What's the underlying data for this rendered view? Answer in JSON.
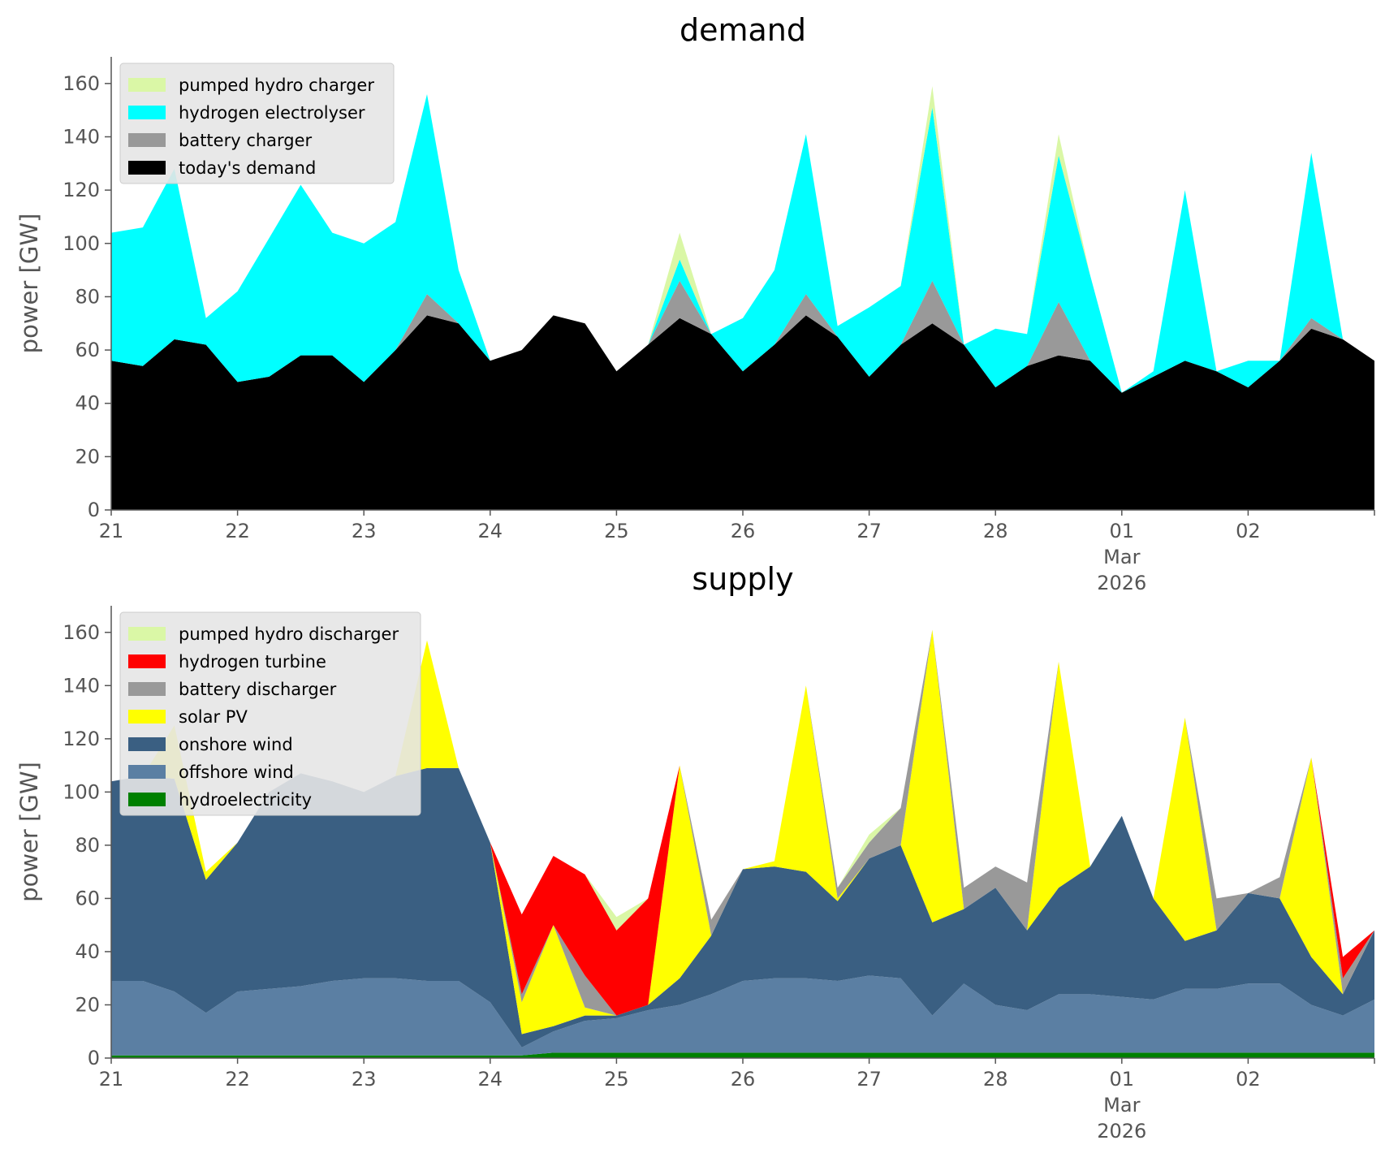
{
  "chart_data": [
    {
      "type": "area",
      "stacked": true,
      "title": "demand",
      "ylabel": "power [GW]",
      "ylim": [
        0,
        170
      ],
      "yticks": [
        0,
        20,
        40,
        60,
        80,
        100,
        120,
        140,
        160
      ],
      "xlim": [
        "2026-02-21 00:00",
        "2026-03-03 00:00"
      ],
      "xticks": [
        {
          "t": "2026-02-21",
          "label": "21"
        },
        {
          "t": "2026-02-22",
          "label": "22"
        },
        {
          "t": "2026-02-23",
          "label": "23"
        },
        {
          "t": "2026-02-24",
          "label": "24"
        },
        {
          "t": "2026-02-25",
          "label": "25"
        },
        {
          "t": "2026-02-26",
          "label": "26"
        },
        {
          "t": "2026-02-27",
          "label": "27"
        },
        {
          "t": "2026-02-28",
          "label": "28"
        },
        {
          "t": "2026-03-01",
          "label": "01",
          "sub1": "Mar",
          "sub2": "2026"
        },
        {
          "t": "2026-03-02",
          "label": "02"
        },
        {
          "t": "2026-03-03",
          "label": ""
        }
      ],
      "legend_position": "top-left",
      "grid": false,
      "x": [
        "2026-02-21 00:00",
        "2026-02-21 06:00",
        "2026-02-21 12:00",
        "2026-02-21 18:00",
        "2026-02-22 00:00",
        "2026-02-22 06:00",
        "2026-02-22 12:00",
        "2026-02-22 18:00",
        "2026-02-23 00:00",
        "2026-02-23 06:00",
        "2026-02-23 12:00",
        "2026-02-23 18:00",
        "2026-02-24 00:00",
        "2026-02-24 06:00",
        "2026-02-24 12:00",
        "2026-02-24 18:00",
        "2026-02-25 00:00",
        "2026-02-25 06:00",
        "2026-02-25 12:00",
        "2026-02-25 18:00",
        "2026-02-26 00:00",
        "2026-02-26 06:00",
        "2026-02-26 12:00",
        "2026-02-26 18:00",
        "2026-02-27 00:00",
        "2026-02-27 06:00",
        "2026-02-27 12:00",
        "2026-02-27 18:00",
        "2026-02-28 00:00",
        "2026-02-28 06:00",
        "2026-02-28 12:00",
        "2026-02-28 18:00",
        "2026-03-01 00:00",
        "2026-03-01 06:00",
        "2026-03-01 12:00",
        "2026-03-01 18:00",
        "2026-03-02 00:00",
        "2026-03-02 06:00",
        "2026-03-02 12:00",
        "2026-03-02 18:00",
        "2026-03-03 00:00"
      ],
      "series": [
        {
          "name": "today's demand",
          "color": "#000000",
          "values": [
            56,
            54,
            64,
            62,
            48,
            50,
            58,
            58,
            48,
            60,
            73,
            70,
            56,
            60,
            73,
            70,
            52,
            62,
            72,
            66,
            52,
            62,
            73,
            65,
            50,
            62,
            70,
            62,
            46,
            54,
            58,
            56,
            44,
            50,
            56,
            52,
            46,
            56,
            68,
            64,
            56
          ]
        },
        {
          "name": "battery charger",
          "color": "#999999",
          "values": [
            0,
            0,
            0,
            0,
            0,
            0,
            0,
            0,
            0,
            0,
            8,
            0,
            0,
            0,
            0,
            0,
            0,
            0,
            14,
            0,
            0,
            0,
            8,
            0,
            0,
            0,
            16,
            0,
            0,
            0,
            20,
            0,
            0,
            0,
            0,
            0,
            0,
            0,
            4,
            0,
            0
          ]
        },
        {
          "name": "hydrogen electrolyser",
          "color": "#00ffff",
          "values": [
            48,
            52,
            64,
            10,
            34,
            52,
            64,
            46,
            52,
            48,
            75,
            20,
            0,
            0,
            0,
            0,
            0,
            0,
            8,
            0,
            20,
            28,
            60,
            4,
            26,
            22,
            65,
            0,
            22,
            12,
            55,
            32,
            0,
            2,
            64,
            0,
            10,
            0,
            62,
            0,
            0
          ]
        },
        {
          "name": "pumped hydro charger",
          "color": "#daf7a6",
          "values": [
            0,
            0,
            0,
            0,
            0,
            0,
            0,
            0,
            0,
            0,
            0,
            0,
            0,
            0,
            0,
            0,
            0,
            0,
            10,
            0,
            0,
            0,
            0,
            0,
            0,
            0,
            8,
            0,
            0,
            0,
            8,
            0,
            0,
            0,
            0,
            0,
            0,
            0,
            0,
            0,
            0
          ]
        }
      ]
    },
    {
      "type": "area",
      "stacked": true,
      "title": "supply",
      "ylabel": "power [GW]",
      "ylim": [
        0,
        170
      ],
      "yticks": [
        0,
        20,
        40,
        60,
        80,
        100,
        120,
        140,
        160
      ],
      "xlim": [
        "2026-02-21 00:00",
        "2026-03-03 00:00"
      ],
      "xticks": [
        {
          "t": "2026-02-21",
          "label": "21"
        },
        {
          "t": "2026-02-22",
          "label": "22"
        },
        {
          "t": "2026-02-23",
          "label": "23"
        },
        {
          "t": "2026-02-24",
          "label": "24"
        },
        {
          "t": "2026-02-25",
          "label": "25"
        },
        {
          "t": "2026-02-26",
          "label": "26"
        },
        {
          "t": "2026-02-27",
          "label": "27"
        },
        {
          "t": "2026-02-28",
          "label": "28"
        },
        {
          "t": "2026-03-01",
          "label": "01",
          "sub1": "Mar",
          "sub2": "2026"
        },
        {
          "t": "2026-03-02",
          "label": "02"
        },
        {
          "t": "2026-03-03",
          "label": ""
        }
      ],
      "legend_position": "top-left",
      "grid": false,
      "x": [
        "2026-02-21 00:00",
        "2026-02-21 06:00",
        "2026-02-21 12:00",
        "2026-02-21 18:00",
        "2026-02-22 00:00",
        "2026-02-22 06:00",
        "2026-02-22 12:00",
        "2026-02-22 18:00",
        "2026-02-23 00:00",
        "2026-02-23 06:00",
        "2026-02-23 12:00",
        "2026-02-23 18:00",
        "2026-02-24 00:00",
        "2026-02-24 06:00",
        "2026-02-24 12:00",
        "2026-02-24 18:00",
        "2026-02-25 00:00",
        "2026-02-25 06:00",
        "2026-02-25 12:00",
        "2026-02-25 18:00",
        "2026-02-26 00:00",
        "2026-02-26 06:00",
        "2026-02-26 12:00",
        "2026-02-26 18:00",
        "2026-02-27 00:00",
        "2026-02-27 06:00",
        "2026-02-27 12:00",
        "2026-02-27 18:00",
        "2026-02-28 00:00",
        "2026-02-28 06:00",
        "2026-02-28 12:00",
        "2026-02-28 18:00",
        "2026-03-01 00:00",
        "2026-03-01 06:00",
        "2026-03-01 12:00",
        "2026-03-01 18:00",
        "2026-03-02 00:00",
        "2026-03-02 06:00",
        "2026-03-02 12:00",
        "2026-03-02 18:00",
        "2026-03-03 00:00"
      ],
      "series": [
        {
          "name": "hydroelectricity",
          "color": "#008000",
          "values": [
            1,
            1,
            1,
            1,
            1,
            1,
            1,
            1,
            1,
            1,
            1,
            1,
            1,
            1,
            2,
            2,
            2,
            2,
            2,
            2,
            2,
            2,
            2,
            2,
            2,
            2,
            2,
            2,
            2,
            2,
            2,
            2,
            2,
            2,
            2,
            2,
            2,
            2,
            2,
            2,
            2
          ]
        },
        {
          "name": "offshore wind",
          "color": "#5b7fa3",
          "values": [
            28,
            28,
            24,
            16,
            24,
            25,
            26,
            28,
            29,
            29,
            28,
            28,
            20,
            3,
            8,
            12,
            13,
            16,
            18,
            22,
            27,
            28,
            28,
            27,
            29,
            28,
            14,
            26,
            18,
            16,
            22,
            22,
            21,
            20,
            24,
            24,
            26,
            26,
            18,
            14,
            20
          ]
        },
        {
          "name": "onshore wind",
          "color": "#3a5f82",
          "values": [
            75,
            77,
            80,
            50,
            56,
            74,
            80,
            75,
            70,
            76,
            80,
            80,
            60,
            5,
            2,
            2,
            1,
            2,
            10,
            22,
            42,
            42,
            40,
            30,
            44,
            50,
            35,
            28,
            44,
            30,
            40,
            48,
            68,
            38,
            18,
            22,
            34,
            32,
            18,
            8,
            26
          ]
        },
        {
          "name": "solar PV",
          "color": "#ffff00",
          "values": [
            0,
            0,
            20,
            3,
            0,
            0,
            0,
            0,
            0,
            0,
            48,
            0,
            0,
            12,
            38,
            3,
            0,
            0,
            80,
            0,
            0,
            2,
            70,
            1,
            0,
            0,
            110,
            0,
            0,
            0,
            85,
            0,
            0,
            0,
            84,
            0,
            0,
            0,
            75,
            0,
            0
          ]
        },
        {
          "name": "battery discharger",
          "color": "#999999",
          "values": [
            0,
            0,
            0,
            0,
            0,
            0,
            0,
            0,
            0,
            0,
            0,
            0,
            0,
            3,
            0,
            12,
            0,
            0,
            0,
            6,
            0,
            0,
            0,
            4,
            6,
            14,
            0,
            8,
            8,
            18,
            0,
            0,
            0,
            0,
            0,
            12,
            0,
            8,
            0,
            6,
            0
          ]
        },
        {
          "name": "hydrogen turbine",
          "color": "#ff0000",
          "values": [
            0,
            0,
            0,
            0,
            0,
            0,
            0,
            0,
            0,
            0,
            0,
            0,
            0,
            30,
            26,
            38,
            32,
            40,
            0,
            0,
            0,
            0,
            0,
            0,
            0,
            0,
            0,
            0,
            0,
            0,
            0,
            0,
            0,
            0,
            0,
            0,
            0,
            0,
            0,
            8,
            0
          ]
        },
        {
          "name": "pumped hydro discharger",
          "color": "#daf7a6",
          "values": [
            0,
            0,
            0,
            0,
            0,
            0,
            0,
            0,
            0,
            0,
            0,
            0,
            0,
            0,
            0,
            0,
            5,
            0,
            0,
            0,
            0,
            0,
            0,
            0,
            3,
            0,
            0,
            0,
            0,
            0,
            0,
            0,
            0,
            0,
            0,
            0,
            0,
            0,
            0,
            0,
            0
          ]
        }
      ]
    }
  ]
}
